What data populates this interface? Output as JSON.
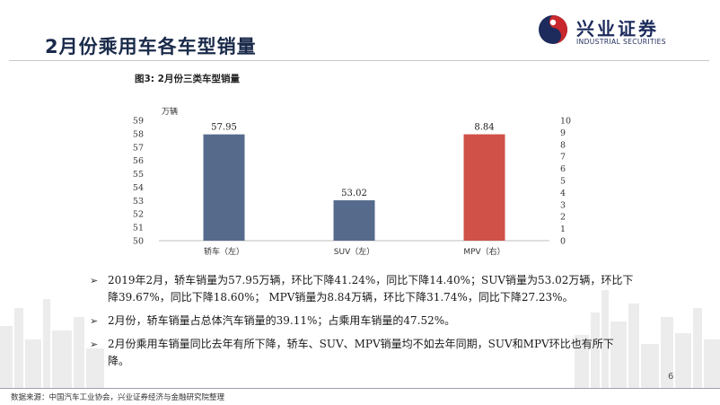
{
  "slide": {
    "title": "2月份乘用车各车型销量",
    "figure_caption": "图3:  2月份三类车型销量",
    "page_number": "6",
    "source": "数据来源：中国汽车工业协会，兴业证券经济与金融研究院整理"
  },
  "logo": {
    "name_cn": "兴业证券",
    "name_en": "INDUSTRIAL SECURITIES",
    "colors": {
      "navy": "#1c2a5c",
      "red": "#c8272d"
    }
  },
  "chart_data": {
    "type": "bar",
    "title": "",
    "unit_label": "万辆",
    "categories": [
      "轿车（左）",
      "SUV（左）",
      "MPV（右）"
    ],
    "values": [
      57.95,
      53.02,
      8.84
    ],
    "value_labels": [
      "57.95",
      "53.02",
      "8.84"
    ],
    "axis_assignment": [
      "left",
      "left",
      "right"
    ],
    "colors": [
      "#566b8c",
      "#566b8c",
      "#cf5148"
    ],
    "left_axis": {
      "min": 50,
      "max": 59,
      "ticks": [
        "50",
        "51",
        "52",
        "53",
        "54",
        "55",
        "56",
        "57",
        "58",
        "59"
      ]
    },
    "right_axis": {
      "min": 0,
      "max": 10,
      "ticks": [
        "0",
        "1",
        "2",
        "3",
        "4",
        "5",
        "6",
        "7",
        "8",
        "9",
        "10"
      ]
    },
    "grid": false,
    "legend": "none"
  },
  "bullets": [
    {
      "lines": [
        "2019年2月，轿车销量为57.95万辆，环比下降41.24%，同比下降14.40%；SUV销量为53.02万辆，环比下",
        "降39.67%，同比下降18.60%； MPV销量为8.84万辆，环比下降31.74%，同比下降27.23%。"
      ]
    },
    {
      "lines": [
        "2月份，轿车销量占总体汽车销量的39.11%；占乘用车销量的47.52%。"
      ]
    },
    {
      "lines": [
        "2月份乘用车销量同比去年有所下降，轿车、SUV、MPV销量均不如去年同期，SUV和MPV环比也有所下",
        "降。"
      ]
    }
  ],
  "bullet_marker": "➢"
}
